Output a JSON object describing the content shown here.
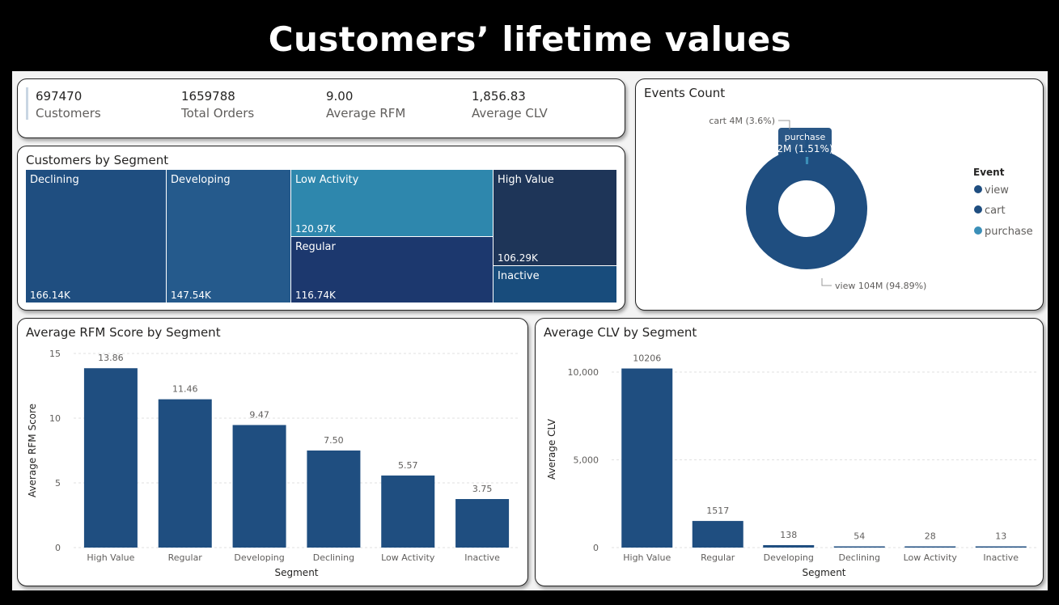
{
  "title": "Customers’ lifetime values",
  "kpis": [
    {
      "value": "697470",
      "label": "Customers"
    },
    {
      "value": "1659788",
      "label": "Total Orders"
    },
    {
      "value": "9.00",
      "label": "Average RFM"
    },
    {
      "value": "1,856.83",
      "label": "Average CLV"
    }
  ],
  "segments": {
    "title": "Customers by Segment",
    "tiles": [
      {
        "name": "Declining",
        "value": "166.14K",
        "color": "#1f4e80"
      },
      {
        "name": "Developing",
        "value": "147.54K",
        "color": "#255a8c"
      },
      {
        "name": "Low Activity",
        "value": "120.97K",
        "color": "#2e87ad"
      },
      {
        "name": "Regular",
        "value": "116.74K",
        "color": "#1c386e"
      },
      {
        "name": "High Value",
        "value": "106.29K",
        "color": "#1e3558"
      },
      {
        "name": "Inactive",
        "value": "",
        "color": "#184c7c"
      }
    ]
  },
  "events": {
    "title": "Events Count",
    "legend_title": "Event",
    "slices": [
      {
        "name": "view",
        "color": "#1f4e80",
        "label": "view 104M (94.89%)"
      },
      {
        "name": "cart",
        "color": "#1f4e80",
        "label": "cart 4M (3.6%)"
      },
      {
        "name": "purchase",
        "color": "#3b8fb8",
        "label_line1": "purchase",
        "label_line2": "2M (1.51%)"
      }
    ]
  },
  "chart_data": [
    {
      "type": "bar",
      "title": "Average RFM Score by Segment",
      "xlabel": "Segment",
      "ylabel": "Average RFM Score",
      "categories": [
        "High Value",
        "Regular",
        "Developing",
        "Declining",
        "Low Activity",
        "Inactive"
      ],
      "values": [
        13.86,
        11.46,
        9.47,
        7.5,
        5.57,
        3.75
      ],
      "value_labels": [
        "13.86",
        "11.46",
        "9.47",
        "7.50",
        "5.57",
        "3.75"
      ],
      "ylim": [
        0,
        15
      ],
      "yticks": [
        0,
        5,
        10,
        15
      ],
      "ytick_labels": [
        "0",
        "5",
        "10",
        "15"
      ],
      "color": "#1f4e80"
    },
    {
      "type": "bar",
      "title": "Average CLV by Segment",
      "xlabel": "Segment",
      "ylabel": "Average CLV",
      "categories": [
        "High Value",
        "Regular",
        "Developing",
        "Declining",
        "Low Activity",
        "Inactive"
      ],
      "values": [
        10206,
        1517,
        138,
        54,
        28,
        13
      ],
      "value_labels": [
        "10206",
        "1517",
        "138",
        "54",
        "28",
        "13"
      ],
      "ylim": [
        0,
        11200
      ],
      "yticks": [
        0,
        5000,
        10000
      ],
      "ytick_labels": [
        "0",
        "5,000",
        "10,000"
      ],
      "color": "#1f4e80"
    }
  ]
}
